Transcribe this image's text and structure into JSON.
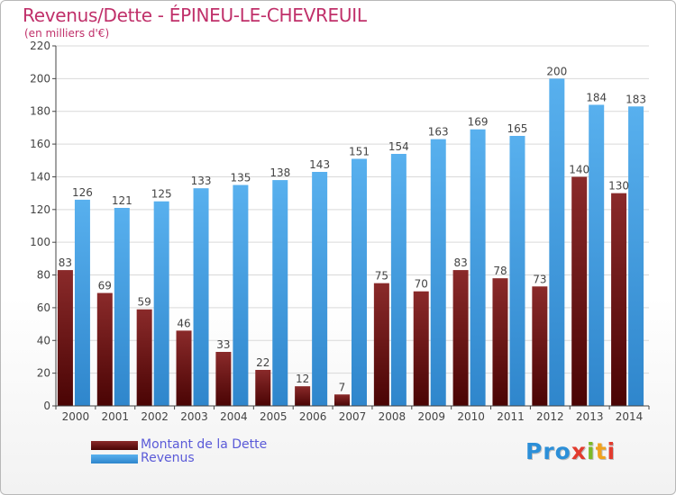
{
  "header": {
    "title": "Revenus/Dette - ÉPINEU-LE-CHEVREUIL",
    "subtitle": "(en milliers d'€)"
  },
  "legend": {
    "dette_label": "Montant de la Dette",
    "revenus_label": "Revenus"
  },
  "logo": {
    "letters": [
      "P",
      "r",
      "o",
      "x",
      "i",
      "t",
      "i"
    ],
    "colors": [
      "#2c8fd8",
      "#2c8fd8",
      "#2c8fd8",
      "#e23b2e",
      "#7cb928",
      "#f0a21e",
      "#e23b2e"
    ]
  },
  "colors": {
    "dette": "#7a1a1a",
    "dette_dark": "#520808",
    "revenus": "#4aa3e6",
    "revenus_dark": "#2f86cc",
    "grid": "#d9d9d9",
    "axis": "#444444",
    "label": "#444444"
  },
  "chart_data": {
    "type": "bar",
    "title": "Revenus/Dette - ÉPINEU-LE-CHEVREUIL",
    "subtitle": "(en milliers d'€)",
    "categories": [
      "2000",
      "2001",
      "2002",
      "2003",
      "2004",
      "2005",
      "2006",
      "2007",
      "2008",
      "2009",
      "2010",
      "2011",
      "2012",
      "2013",
      "2014"
    ],
    "series": [
      {
        "name": "Montant de la Dette",
        "values": [
          83,
          69,
          59,
          46,
          33,
          22,
          12,
          7,
          75,
          70,
          83,
          78,
          73,
          140,
          130
        ]
      },
      {
        "name": "Revenus",
        "values": [
          126,
          121,
          125,
          133,
          135,
          138,
          143,
          151,
          154,
          163,
          169,
          165,
          200,
          184,
          183
        ]
      }
    ],
    "ylim": [
      0,
      220
    ],
    "yticks": [
      0,
      20,
      40,
      60,
      80,
      100,
      120,
      140,
      160,
      180,
      200,
      220
    ],
    "grid": true,
    "legend_position": "bottom-left"
  }
}
